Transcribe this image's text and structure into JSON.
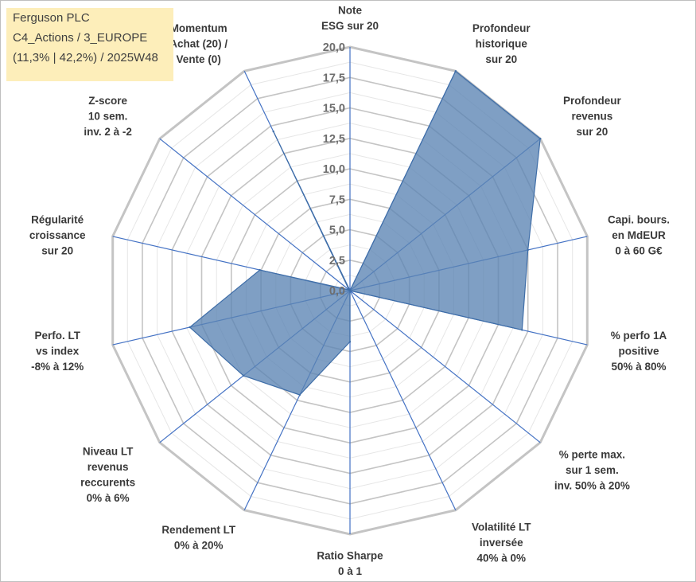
{
  "header": {
    "line1": "Ferguson PLC",
    "line2": "C4_Actions / 3_EUROPE",
    "line3": "(11,3% | 42,2%) / 2025W48"
  },
  "colors": {
    "fill": "#5b84b4",
    "stroke": "#3f6ea8",
    "spoke": "#4472c4",
    "ring_major": "#c4c4c4",
    "ring_minor": "#e6e6e6"
  },
  "chart_data": {
    "type": "radar",
    "title": "Ferguson PLC",
    "rlim": [
      0,
      20
    ],
    "ticks": [
      "0,0",
      "2,5",
      "5,0",
      "7,5",
      "10,0",
      "12,5",
      "15,0",
      "17,5",
      "20,0"
    ],
    "tick_values": [
      0,
      2.5,
      5,
      7.5,
      10,
      12.5,
      15,
      17.5,
      20
    ],
    "axes": [
      {
        "label": [
          "Note",
          "ESG sur 20"
        ],
        "value": 0
      },
      {
        "label": [
          "Profondeur",
          "historique",
          "sur 20"
        ],
        "value": 20
      },
      {
        "label": [
          "Profondeur",
          "revenus",
          "sur 20"
        ],
        "value": 20
      },
      {
        "label": [
          "Capi. bours.",
          "en MdEUR",
          "0 à 60 G€"
        ],
        "value": 15
      },
      {
        "label": [
          "% perfo 1A",
          "positive",
          "50% à 80%"
        ],
        "value": 14.5
      },
      {
        "label": [
          "% perte max.",
          "sur 1 sem.",
          "inv. 50% à 20%"
        ],
        "value": 0
      },
      {
        "label": [
          "Volatilité LT",
          "inversée",
          "40% à 0%"
        ],
        "value": 0
      },
      {
        "label": [
          "Ratio Sharpe",
          "0 à 1"
        ],
        "value": 4.2
      },
      {
        "label": [
          "Rendement LT",
          "0% à 20%"
        ],
        "value": 9.5
      },
      {
        "label": [
          "Niveau LT",
          "revenus",
          "reccurents",
          "0% à 6%"
        ],
        "value": 11.2
      },
      {
        "label": [
          "Perfo. LT",
          "vs index",
          "-8% à 12%"
        ],
        "value": 13.5
      },
      {
        "label": [
          "Régularité",
          "croissance",
          "sur 20"
        ],
        "value": 7.6
      },
      {
        "label": [
          "Z-score",
          "10 sem.",
          "inv. 2 à -2"
        ],
        "value": 0.1
      },
      {
        "label": [
          "Momentum",
          "Achat (20) /",
          "Vente (0)"
        ],
        "value": 14.5
      }
    ]
  }
}
